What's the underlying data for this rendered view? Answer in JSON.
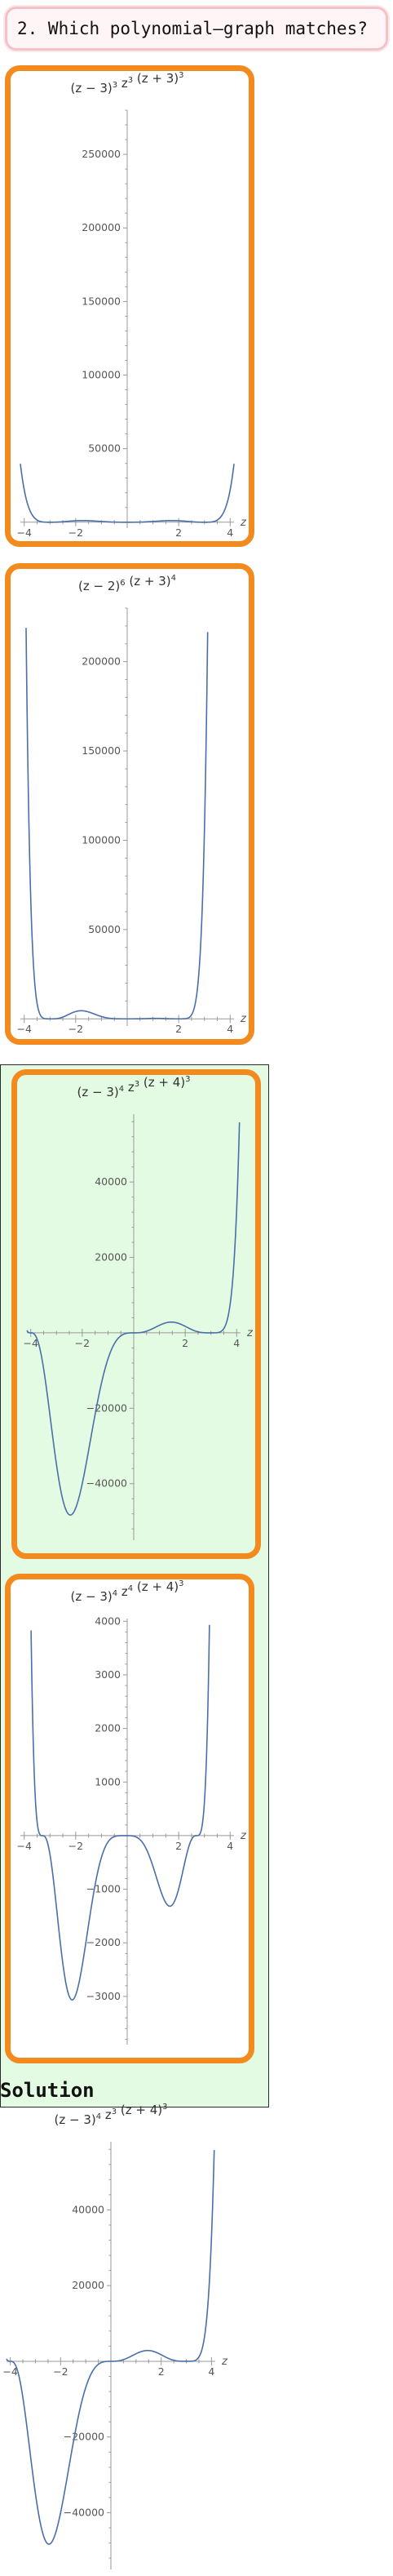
{
  "question": {
    "text": "2. Which polynomial–graph matches?"
  },
  "solution_heading": "Solution",
  "chart_data": [
    {
      "type": "line",
      "title": "(z − 3)^3 z^3 (z + 3)^3",
      "title_parts": [
        [
          "(z − 3)",
          "3"
        ],
        [
          " z",
          "3"
        ],
        [
          " (z + 3)",
          "3"
        ]
      ],
      "xlabel": "z",
      "ylabel": "",
      "xlim": [
        -4.15,
        4.15
      ],
      "ylim": [
        -4000,
        280000
      ],
      "x_ticks": [
        -4,
        -2,
        2,
        4
      ],
      "x_tick_labels": [
        "−4",
        "−2",
        "2",
        "4"
      ],
      "y_ticks": [
        50000,
        100000,
        150000,
        200000,
        250000
      ],
      "y_tick_labels": [
        "50000",
        "100000",
        "150000",
        "200000",
        "250000"
      ],
      "roots": [
        -3,
        0,
        3
      ],
      "mults": [
        3,
        3,
        3
      ],
      "abs_value": true,
      "grid": false,
      "line_color": "#4a6fa8"
    },
    {
      "type": "line",
      "title": "(z − 2)^6 (z + 3)^4",
      "title_parts": [
        [
          "(z − 2)",
          "6"
        ],
        [
          " (z + 3)",
          "4"
        ]
      ],
      "xlabel": "z",
      "ylabel": "",
      "xlim": [
        -4.15,
        4.15
      ],
      "ylim": [
        -4000,
        230000
      ],
      "x_ticks": [
        -4,
        -2,
        2,
        4
      ],
      "x_tick_labels": [
        "−4",
        "−2",
        "2",
        "4"
      ],
      "y_ticks": [
        50000,
        100000,
        150000,
        200000
      ],
      "y_tick_labels": [
        "50000",
        "100000",
        "150000",
        "200000"
      ],
      "roots": [
        -3,
        0,
        2
      ],
      "mults": [
        4,
        4,
        4
      ],
      "abs_value": false,
      "grid": false,
      "line_color": "#4a6fa8"
    },
    {
      "type": "line",
      "title": "(z − 3)^4 z^3 (z + 4)^3",
      "title_parts": [
        [
          "(z − 3)",
          "4"
        ],
        [
          " z",
          "3"
        ],
        [
          " (z + 4)",
          "3"
        ]
      ],
      "xlabel": "z",
      "ylabel": "",
      "xlim": [
        -4.15,
        4.15
      ],
      "ylim": [
        -55000,
        58000
      ],
      "x_ticks": [
        -4,
        -2,
        2,
        4
      ],
      "x_tick_labels": [
        "−4",
        "−2",
        "2",
        "4"
      ],
      "y_ticks": [
        -40000,
        -20000,
        20000,
        40000
      ],
      "y_tick_labels": [
        "−40000",
        "−20000",
        "20000",
        "40000"
      ],
      "roots": [
        -4,
        0,
        3
      ],
      "mults": [
        3,
        3,
        4
      ],
      "abs_value": false,
      "grid": false,
      "line_color": "#4a6fa8"
    },
    {
      "type": "line",
      "title": "(z − 3)^4 z^4 (z + 4)^3",
      "title_parts": [
        [
          "(z − 3)",
          "4"
        ],
        [
          " z",
          "4"
        ],
        [
          " (z + 4)",
          "3"
        ]
      ],
      "xlabel": "z",
      "ylabel": "",
      "xlim": [
        -4.15,
        4.15
      ],
      "ylim": [
        -3900,
        4050
      ],
      "x_ticks": [
        -4,
        -2,
        2,
        4
      ],
      "x_tick_labels": [
        "−4",
        "−2",
        "2",
        "4"
      ],
      "y_ticks": [
        -3000,
        -2000,
        -1000,
        1000,
        2000,
        3000,
        4000
      ],
      "y_tick_labels": [
        "−3000",
        "−2000",
        "−1000",
        "1000",
        "2000",
        "3000",
        "4000"
      ],
      "roots": [
        -3.3,
        -0.1,
        2.7
      ],
      "mults": [
        3,
        4,
        3
      ],
      "abs_value": false,
      "grid": false,
      "line_color": "#4a6fa8"
    },
    {
      "type": "line",
      "title": "(z − 3)^4 z^3 (z + 4)^3",
      "title_parts": [
        [
          "(z − 3)",
          "4"
        ],
        [
          " z",
          "3"
        ],
        [
          " (z + 4)",
          "3"
        ]
      ],
      "xlabel": "z",
      "ylabel": "",
      "xlim": [
        -4.15,
        4.15
      ],
      "ylim": [
        -55000,
        58000
      ],
      "x_ticks": [
        -4,
        -2,
        2,
        4
      ],
      "x_tick_labels": [
        "−4",
        "−2",
        "2",
        "4"
      ],
      "y_ticks": [
        -40000,
        -20000,
        20000,
        40000
      ],
      "y_tick_labels": [
        "−40000",
        "−20000",
        "20000",
        "40000"
      ],
      "roots": [
        -4,
        0,
        3
      ],
      "mults": [
        3,
        3,
        4
      ],
      "abs_value": false,
      "grid": false,
      "line_color": "#4a6fa8"
    }
  ]
}
